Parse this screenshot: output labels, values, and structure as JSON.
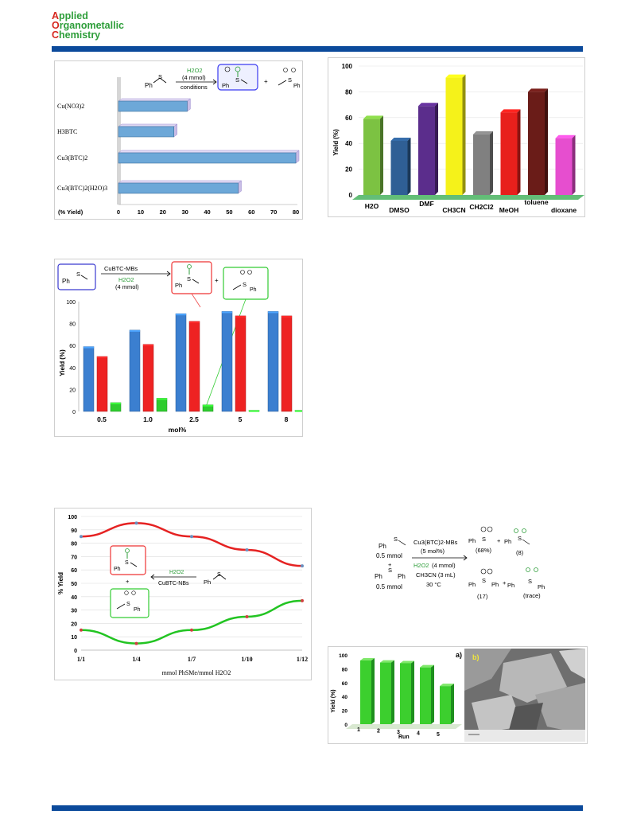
{
  "journal": {
    "line1_cap": "A",
    "line1_rest": "pplied",
    "line2_cap": "O",
    "line2_rest": "rganometallic",
    "line3_cap": "C",
    "line3_rest": "hemistry"
  },
  "colors": {
    "accent": "#0b4a9b",
    "brand_green": "#2e9e3a",
    "brand_red": "#d6281f"
  },
  "scheme_top": {
    "reagent": "Ph",
    "oxidant": "H2O2",
    "oxidant_amount": "(4 mmol)",
    "conditions": "conditions",
    "product1_ph": "Ph",
    "plus": "+",
    "product2_ph": "Ph"
  },
  "scheme_mid": {
    "reagent_ph": "Ph",
    "catalyst": "CuBTC-MBs",
    "oxidant": "H2O2",
    "oxidant_amount": "(4 mmol)",
    "product1_ph": "Ph",
    "plus": "+",
    "product2_ph": "Ph"
  },
  "scheme_line": {
    "product1_ph": "Ph",
    "plus": "+",
    "product2_ph": "Ph",
    "oxidant": "H2O2",
    "catalyst": "CuBTC-NBs",
    "reagent_ph": "Ph"
  },
  "scheme_right": {
    "r1_ph": "Ph",
    "r1_amount": "0.5 mmol",
    "plus_left": "+",
    "r2_ph1": "Ph",
    "r2_ph2": "Ph",
    "r2_amount": "0.5 mmol",
    "catalyst": "Cu3(BTC)2-MBs",
    "cat_loading": "(5 mol%)",
    "oxidant": "H2O2",
    "oxidant_amount": "(4 mmol)",
    "solvent": "CH3CN (3 mL)",
    "temperature": "30 °C",
    "p1_ph": "Ph",
    "p1_yield": "(68%)",
    "plus1": "+",
    "p2_ph": "Ph",
    "p2_yield": "(8)",
    "p3_ph1": "Ph",
    "p3_ph2": "Ph",
    "p3_yield": "(17)",
    "plus2": "+",
    "p4_ph1": "Ph",
    "p4_ph2": "Ph",
    "p4_yield": "(trace)"
  },
  "sem_label": "b)",
  "chart_data": [
    {
      "type": "bar",
      "orientation": "horizontal",
      "categories": [
        "Cu(NO3)2",
        "H3BTC",
        "Cu3(BTC)2",
        "Cu3(BTC)2(H2O)3"
      ],
      "values": [
        31,
        25,
        80,
        54
      ],
      "xlabel": "(% Yield)",
      "xticks": [
        "0",
        "10",
        "20",
        "30",
        "40",
        "50",
        "60",
        "70",
        "80"
      ],
      "xlim": [
        0,
        80
      ]
    },
    {
      "type": "bar",
      "categories": [
        "H2O",
        "DMSO",
        "DMF",
        "CH3CN",
        "CH2Cl2",
        "MeOH",
        "toluene",
        "dioxane"
      ],
      "values": [
        59,
        42,
        69,
        91,
        47,
        64,
        80,
        44
      ],
      "colors": [
        "#7cc242",
        "#2f5f95",
        "#5b2d8c",
        "#f5f21a",
        "#808080",
        "#e8201c",
        "#6a1c18",
        "#e64ecf"
      ],
      "ylabel": "Yield (%)",
      "yticks": [
        "0",
        "20",
        "40",
        "60",
        "80",
        "100"
      ],
      "ylim": [
        0,
        100
      ]
    },
    {
      "type": "bar",
      "categories": [
        "0.5",
        "1.0",
        "2.5",
        "5",
        "8"
      ],
      "series": [
        {
          "values": [
            59,
            74,
            89,
            91,
            91
          ],
          "color": "#3b7fd0"
        },
        {
          "values": [
            50,
            61,
            82,
            87,
            87
          ],
          "color": "#ee2222"
        },
        {
          "values": [
            8,
            12,
            6,
            1,
            1
          ],
          "color": "#2ecc2e"
        }
      ],
      "xlabel": "mol%",
      "ylabel": "Yield (%)",
      "yticks": [
        "0",
        "20",
        "40",
        "60",
        "80",
        "100"
      ],
      "ylim": [
        0,
        100
      ]
    },
    {
      "type": "line",
      "x": [
        "1/1",
        "1/4",
        "1/7",
        "1/10",
        "1/12"
      ],
      "series": [
        {
          "values": [
            85,
            95,
            85,
            75,
            63
          ],
          "color": "#e52222"
        },
        {
          "values": [
            15,
            5,
            15,
            25,
            37
          ],
          "color": "#22c422"
        }
      ],
      "xlabel": "mmol PhSMe/mmol H2O2",
      "ylabel": "% Yield",
      "yticks": [
        "0",
        "10",
        "20",
        "30",
        "40",
        "50",
        "60",
        "70",
        "80",
        "90",
        "100"
      ],
      "ylim": [
        0,
        100
      ]
    },
    {
      "type": "bar",
      "categories": [
        "1",
        "2",
        "3",
        "4",
        "5"
      ],
      "values": [
        92,
        89,
        88,
        82,
        55
      ],
      "panel_label": "a)",
      "xlabel": "Run",
      "ylabel": "Yield (%)",
      "yticks": [
        "0",
        "20",
        "40",
        "60",
        "80",
        "100"
      ],
      "ylim": [
        0,
        100
      ]
    }
  ]
}
